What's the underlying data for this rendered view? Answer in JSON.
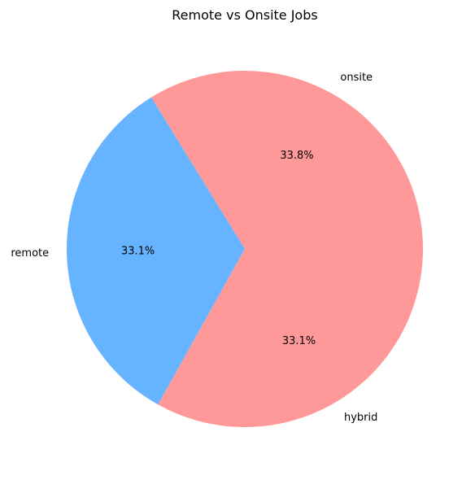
{
  "chart_data": {
    "type": "pie",
    "title": "Remote vs Onsite Jobs",
    "categories": [
      "onsite",
      "remote",
      "hybrid"
    ],
    "values": [
      33.8,
      33.1,
      33.1
    ],
    "percent_labels": [
      "33.8%",
      "33.1%",
      "33.1%"
    ],
    "colors": [
      "#ff9999",
      "#66b3ff",
      "#ff9999"
    ],
    "start_angle_deg": 0,
    "direction": "counterclockwise",
    "legend": "none"
  }
}
